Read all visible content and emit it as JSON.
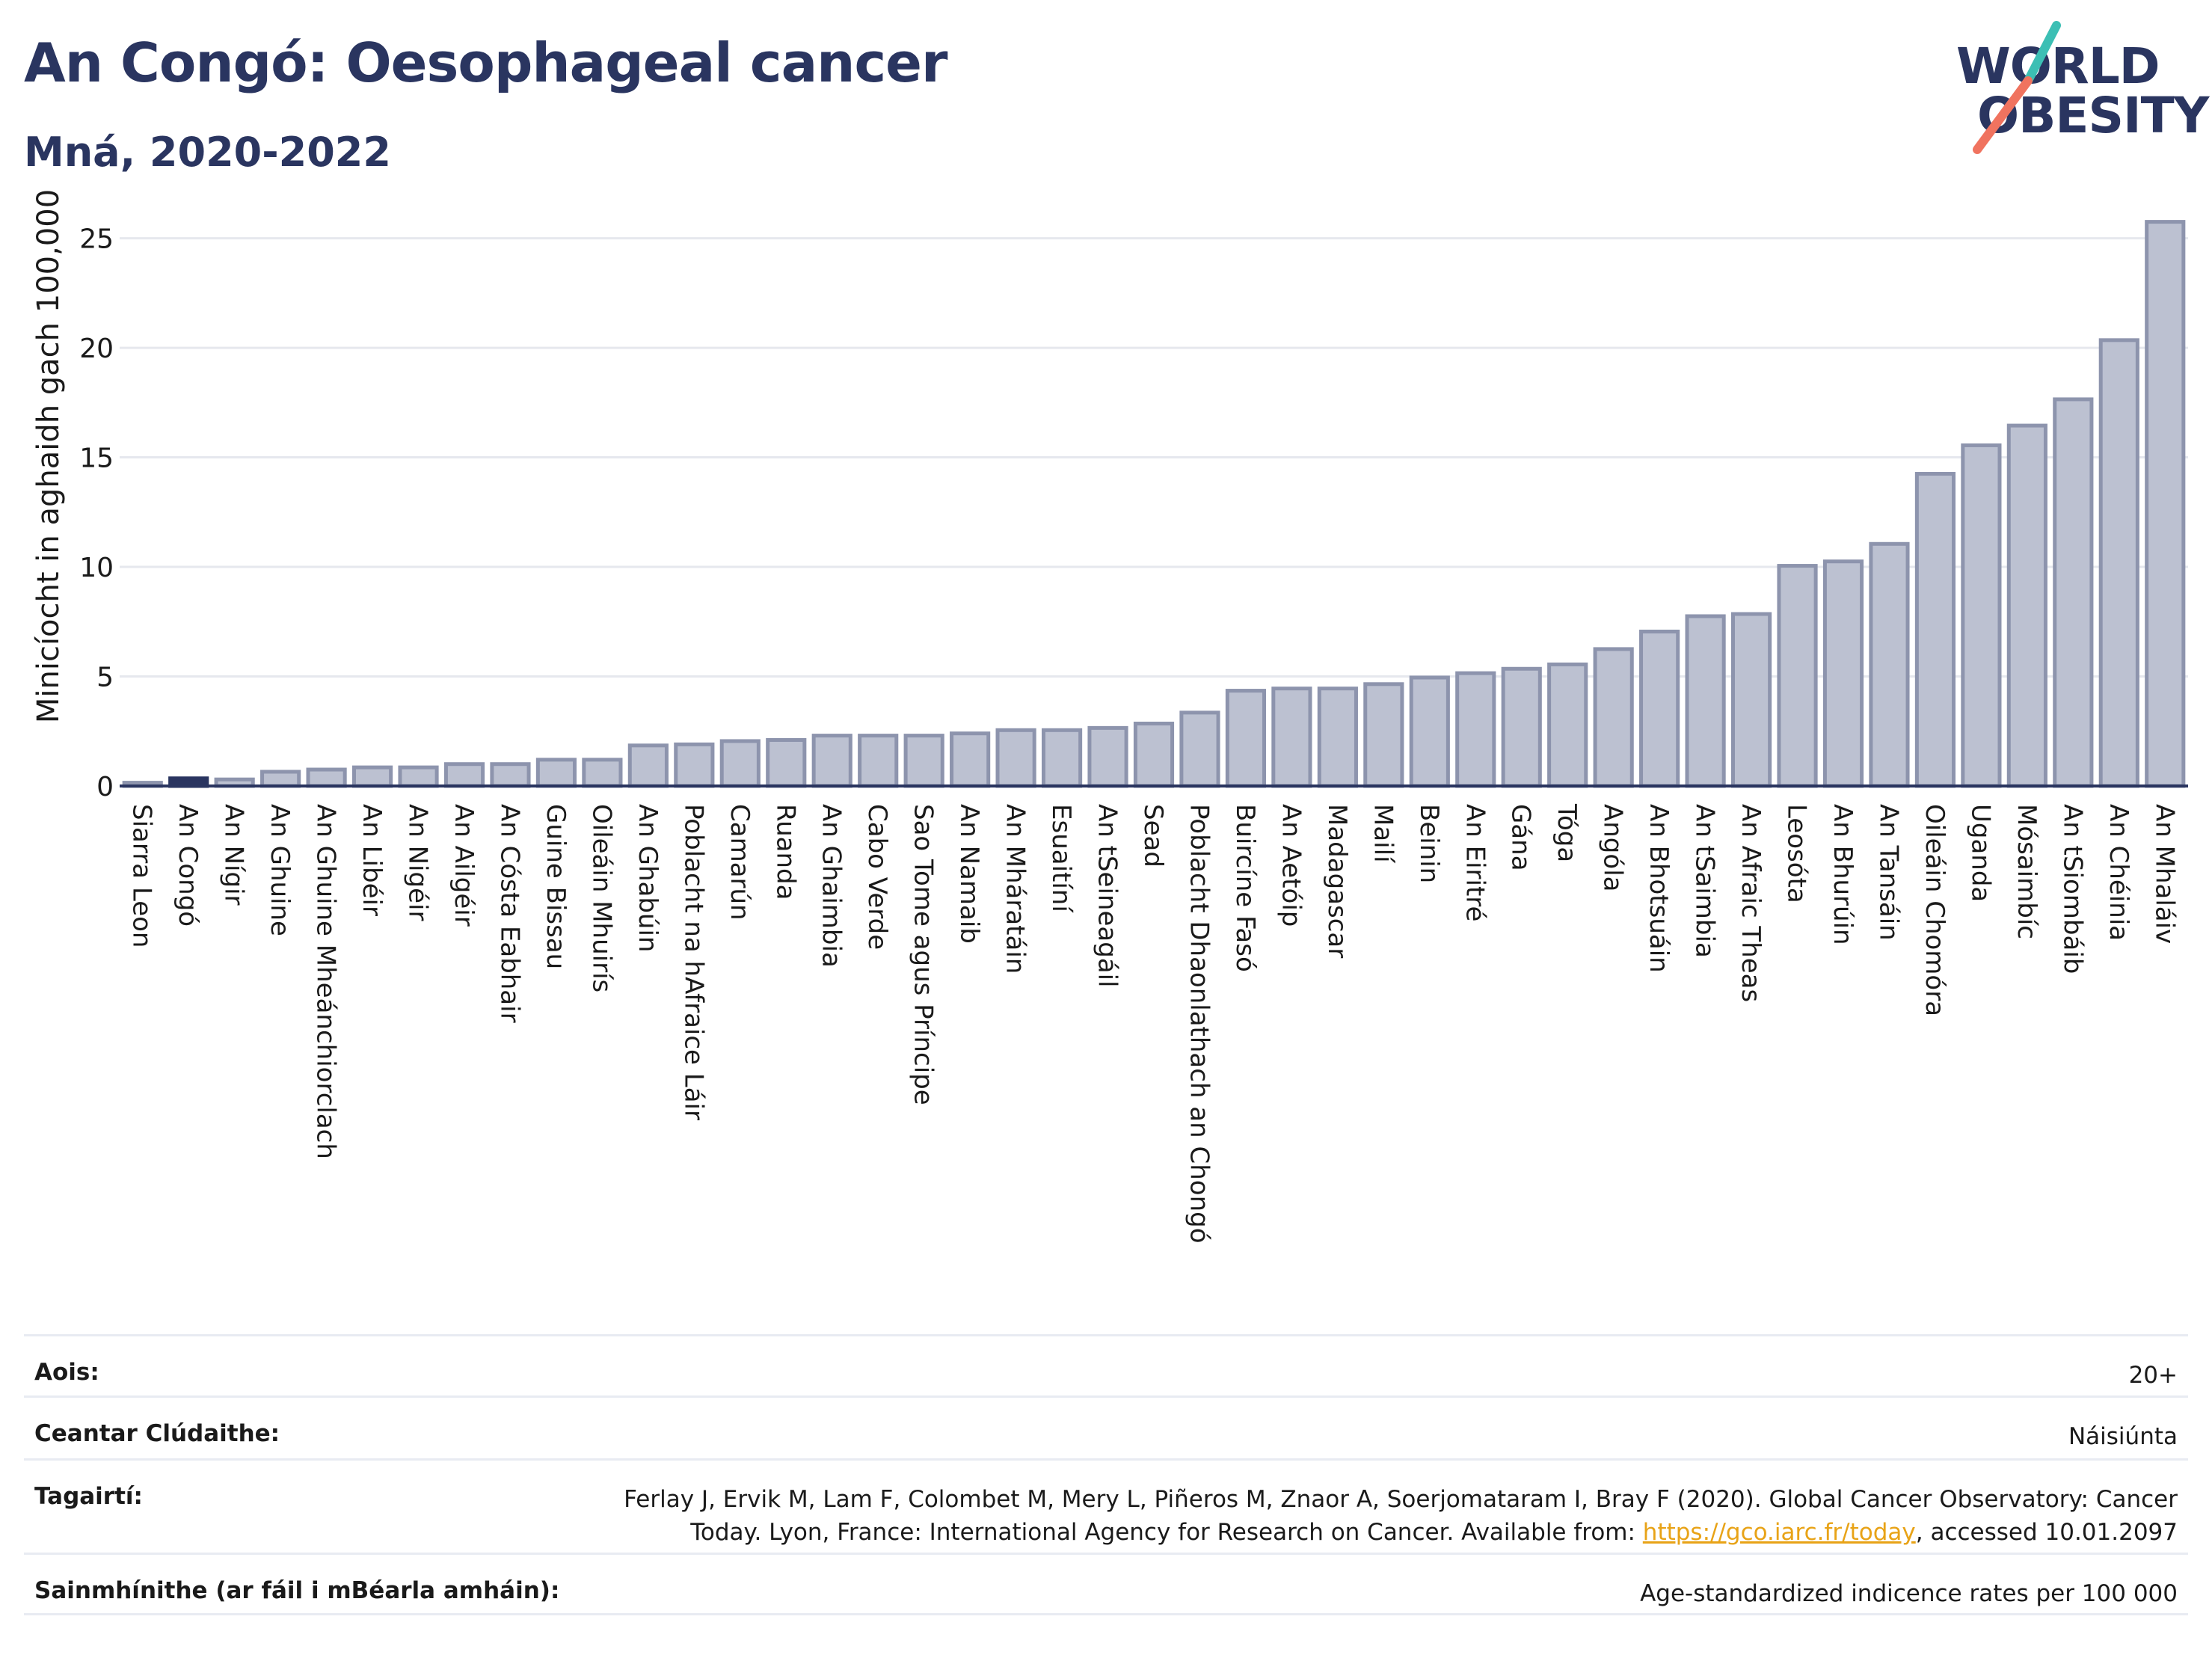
{
  "header": {
    "title": "An Congó: Oesophageal cancer",
    "subtitle": "Mná, 2020-2022"
  },
  "logo": {
    "line1": "WORLD",
    "line2": "OBESITY"
  },
  "colors": {
    "bar_fill": "#bcc1d1",
    "bar_stroke": "#8d94ad",
    "highlight": "#2a3560",
    "axis_line": "#2a3560",
    "grid": "#e6e8ee",
    "link": "#e8a317",
    "logo_teal": "#3cbfb4",
    "logo_coral": "#f0735f"
  },
  "chart_data": {
    "type": "bar",
    "ylabel": "Minicíocht in aghaidh gach 100,000",
    "xlabel": "",
    "ylim": [
      0,
      27
    ],
    "yticks": [
      0,
      5,
      10,
      15,
      20,
      25
    ],
    "grid": true,
    "highlight": "An Congó",
    "categories": [
      "Siarra Leon",
      "An Congó",
      "An Nígir",
      "An Ghuine",
      "An Ghuine Mheánchiorclach",
      "An Libéir",
      "An Nigéir",
      "An Ailgéir",
      "An Cósta Eabhair",
      "Guine Bissau",
      "Oileáin Mhuirís",
      "An Ghabúin",
      "Poblacht na hAfraice Láir",
      "Camarún",
      "Ruanda",
      "An Ghaimbia",
      "Cabo Verde",
      "Sao Tome agus Príncipe",
      "An Namaib",
      "An Mháratáin",
      "Esuaitíní",
      "An tSeineagáil",
      "Sead",
      "Poblacht Dhaonlathach an Chongó",
      "Buircíne Fasó",
      "An Aetóip",
      "Madagascar",
      "Mailí",
      "Beinin",
      "An Eiritré",
      "Gána",
      "Tóga",
      "Angóla",
      "An Bhotsuáin",
      "An tSaimbia",
      "An Afraic Theas",
      "Leosóta",
      "An Bhurúin",
      "An Tansáin",
      "Oileáin Chomóra",
      "Uganda",
      "Mósaimbíc",
      "An tSiombáib",
      "An Chéinia",
      "An Mhaláiv"
    ],
    "values": [
      0.15,
      0.35,
      0.3,
      0.65,
      0.75,
      0.85,
      0.85,
      1.0,
      1.0,
      1.2,
      1.2,
      1.85,
      1.9,
      2.05,
      2.1,
      2.3,
      2.3,
      2.3,
      2.4,
      2.55,
      2.55,
      2.65,
      2.85,
      3.35,
      4.35,
      4.45,
      4.45,
      4.65,
      4.95,
      5.15,
      5.35,
      5.55,
      6.25,
      7.05,
      7.75,
      7.85,
      10.05,
      10.25,
      11.05,
      14.25,
      15.55,
      16.45,
      17.65,
      20.35,
      25.75
    ]
  },
  "info": {
    "age_label": "Aois:",
    "age_value": "20+",
    "coverage_label": "Ceantar Clúdaithe:",
    "coverage_value": "Náisiúnta",
    "references_label": "Tagairtí:",
    "references_text": "Ferlay J, Ervik M, Lam F, Colombet M, Mery L, Piñeros M, Znaor A, Soerjomataram I, Bray F (2020). Global Cancer Observatory: Cancer Today. Lyon, France: International Agency for Research on Cancer. Available from: ",
    "references_link": "https://gco.iarc.fr/today",
    "references_suffix": ", accessed 10.01.2097",
    "definitions_label": "Sainmhínithe (ar fáil i mBéarla amháin):",
    "definitions_value": "Age-standardized indicence rates per 100 000"
  }
}
